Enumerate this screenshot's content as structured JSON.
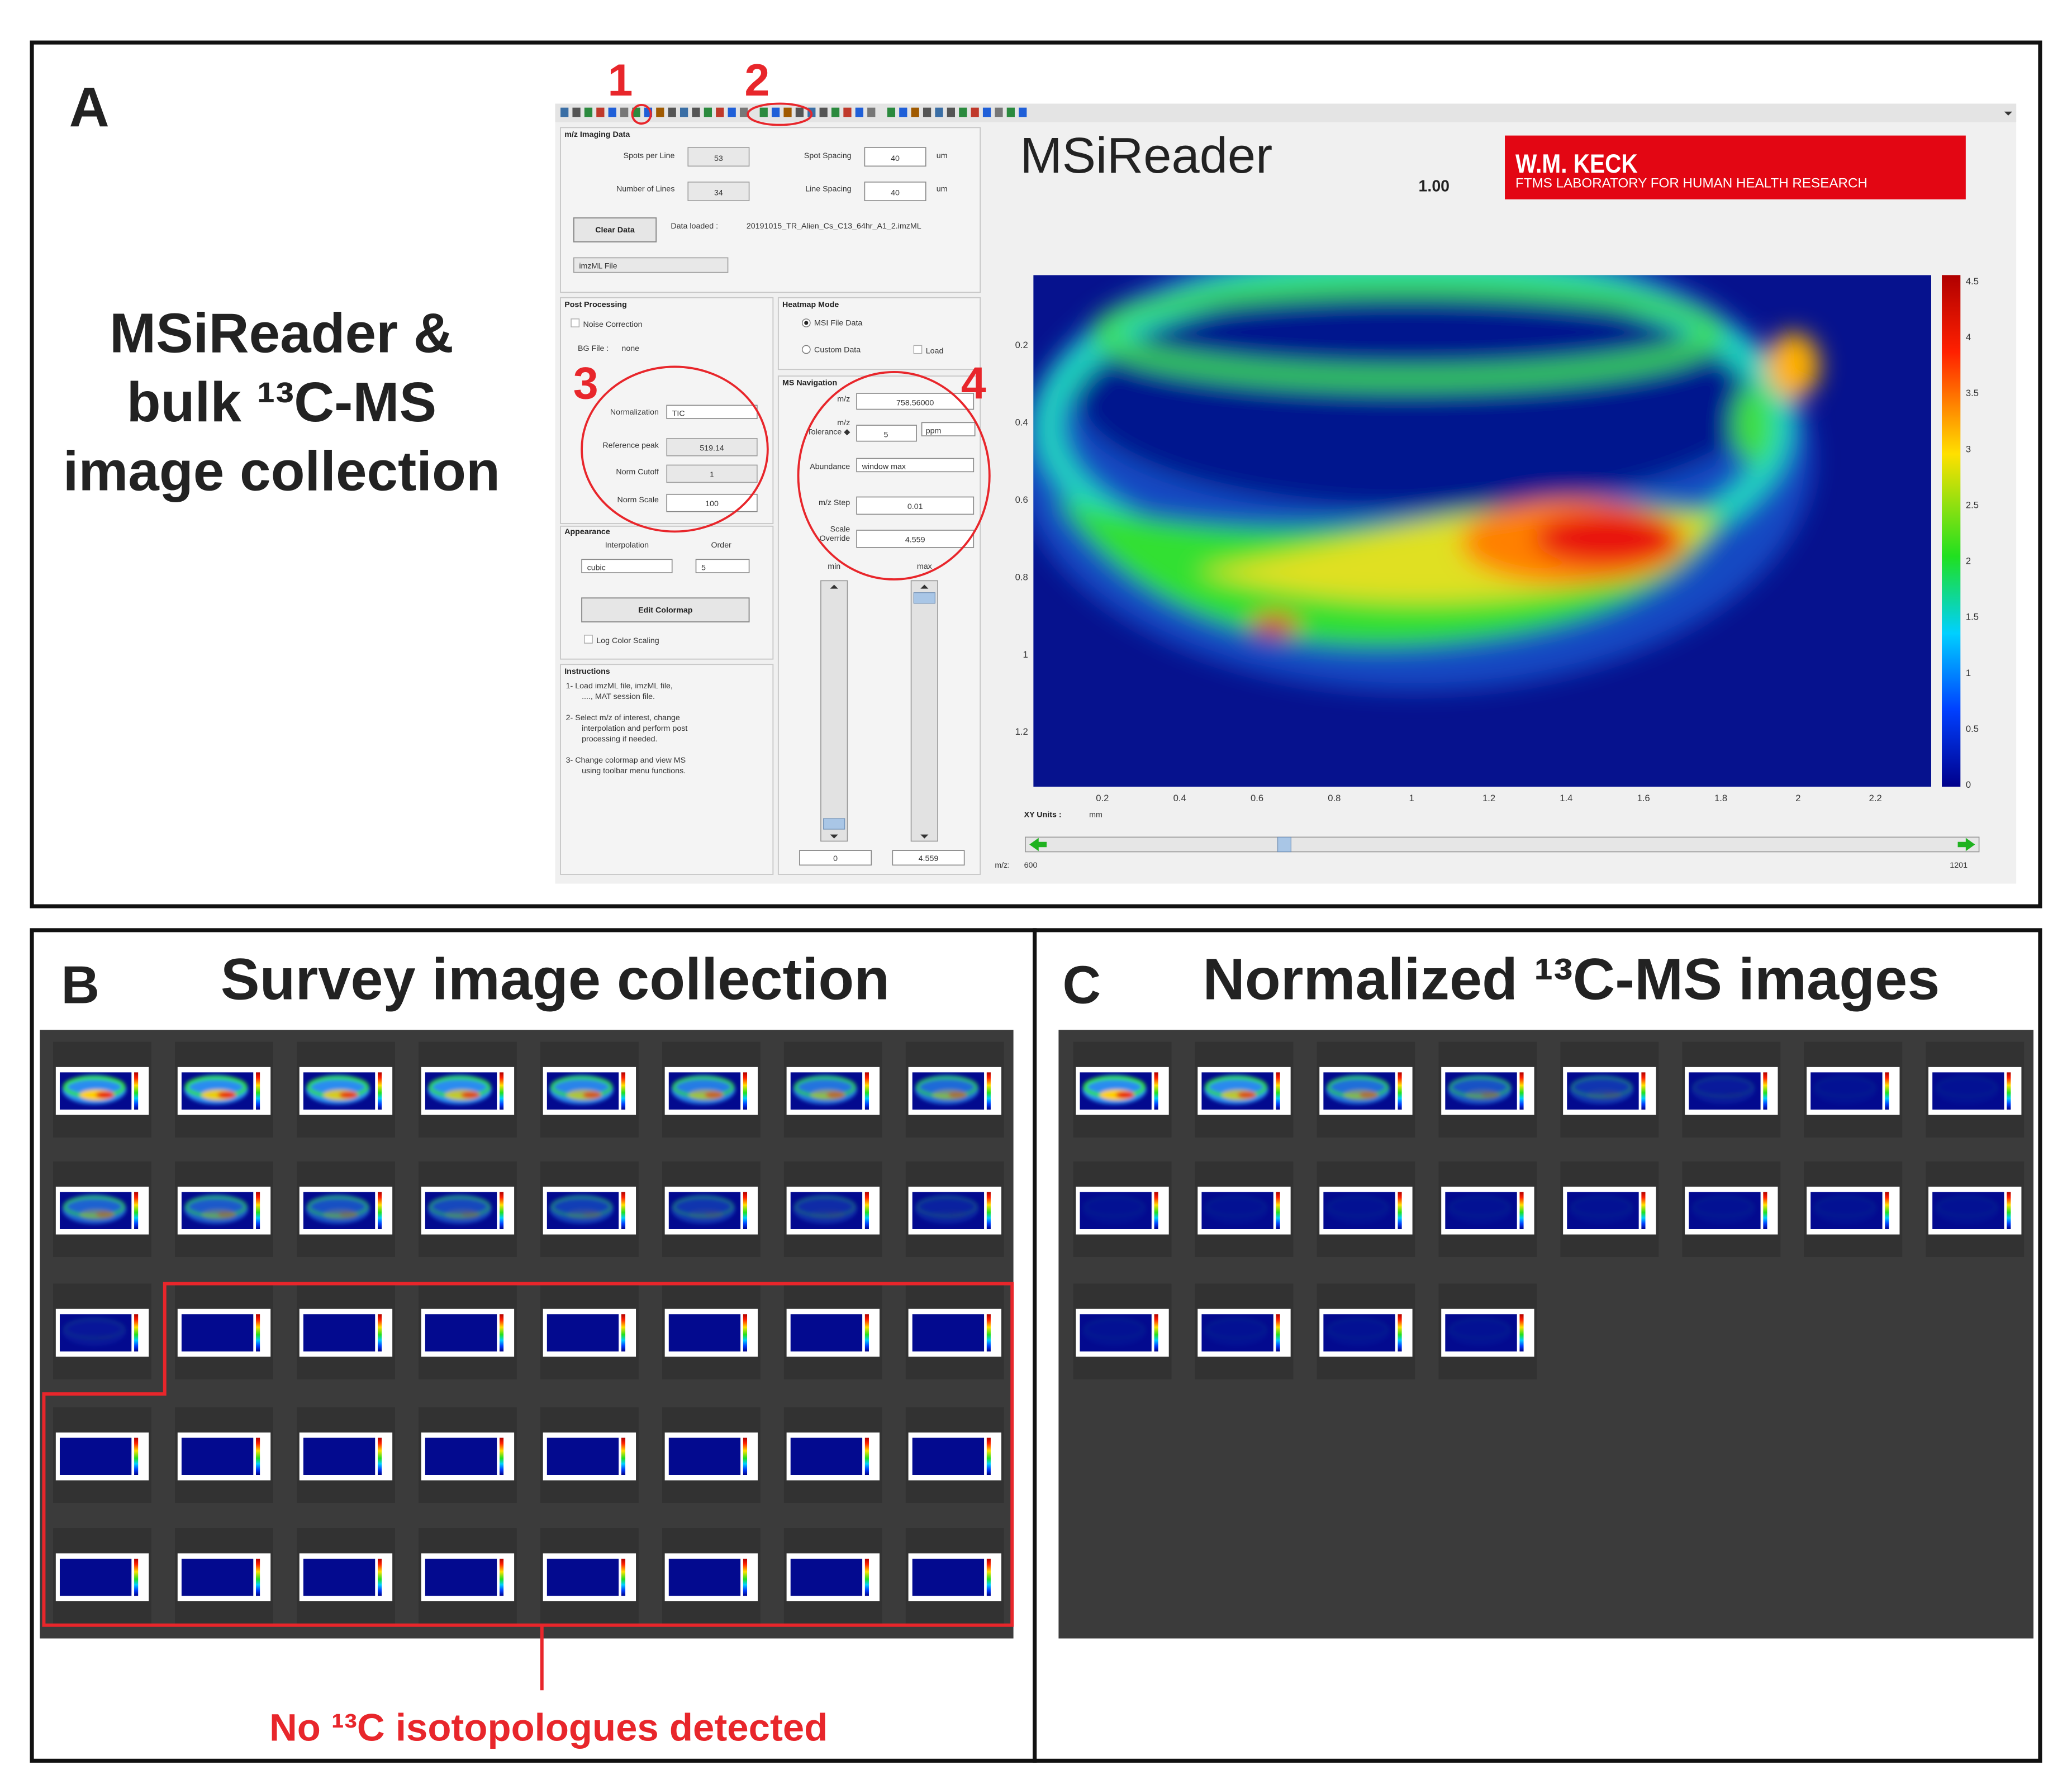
{
  "panel_a": {
    "label": "A",
    "heading": [
      "MSiReader &",
      "bulk ¹³C-MS",
      "image collection"
    ],
    "callouts": [
      "1",
      "2",
      "3",
      "4"
    ]
  },
  "app": {
    "title": "MSiReader",
    "version": "1.00",
    "logo": {
      "title": "W.M. KECK",
      "subtitle": "FTMS LABORATORY FOR HUMAN HEALTH RESEARCH"
    },
    "imaging_data": {
      "heading": "m/z Imaging Data",
      "spots_per_line": {
        "label": "Spots per Line",
        "value": "53"
      },
      "number_of_lines": {
        "label": "Number of Lines",
        "value": "34"
      },
      "spot_spacing": {
        "label": "Spot Spacing",
        "value": "40",
        "unit": "um"
      },
      "line_spacing": {
        "label": "Line Spacing",
        "value": "40",
        "unit": "um"
      },
      "clear_button": "Clear Data",
      "data_loaded": {
        "label": "Data loaded :",
        "value": "20191015_TR_Alien_Cs_C13_64hr_A1_2.imzML"
      },
      "file_type": "imzML File"
    },
    "post_processing": {
      "heading": "Post Processing",
      "noise_correction": "Noise Correction",
      "bg_file": {
        "label": "BG File :",
        "value": "none"
      },
      "normalization": {
        "label": "Normalization",
        "value": "TIC"
      },
      "reference_peak": {
        "label": "Reference peak",
        "value": "519.14"
      },
      "norm_cutoff": {
        "label": "Norm Cutoff",
        "value": "1"
      },
      "norm_scale": {
        "label": "Norm Scale",
        "value": "100"
      }
    },
    "heatmap_mode": {
      "heading": "Heatmap Mode",
      "msi_file": "MSI File Data",
      "custom": "Custom Data",
      "load": "Load"
    },
    "ms_navigation": {
      "heading": "MS Navigation",
      "mz": {
        "label": "m/z",
        "value": "758.56000"
      },
      "tolerance": {
        "label": [
          "m/z",
          "Tolerance ◆"
        ],
        "value": "5",
        "unit": "ppm"
      },
      "abundance": {
        "label": "Abundance",
        "value": "window max"
      },
      "step": {
        "label": "m/z Step",
        "value": "0.01"
      },
      "scale_override": {
        "label": [
          "Scale",
          "Override"
        ],
        "value": "4.559"
      },
      "min_label": "min",
      "max_label": "max",
      "min_value": "0",
      "max_value": "4.559"
    },
    "appearance": {
      "heading": "Appearance",
      "interpolation": {
        "label": "Interpolation",
        "value": "cubic"
      },
      "order": {
        "label": "Order",
        "value": "5"
      },
      "colormap_button": "Edit Colormap",
      "log_scaling": "Log Color Scaling"
    },
    "instructions": {
      "heading": "Instructions",
      "lines": [
        "1- Load imzML file, imzML file,",
        "...., MAT session file.",
        "2- Select m/z of interest, change",
        "interpolation and perform post",
        "processing if needed.",
        "3- Change colormap and view MS",
        "using toolbar menu functions."
      ]
    },
    "heatmap": {
      "yticks": [
        "0.2",
        "0.4",
        "0.6",
        "0.8",
        "1",
        "1.2"
      ],
      "xticks": [
        "0.2",
        "0.4",
        "0.6",
        "0.8",
        "1",
        "1.2",
        "1.4",
        "1.6",
        "1.8",
        "2",
        "2.2"
      ],
      "colorbar_ticks": [
        "4.5",
        "4",
        "3.5",
        "3",
        "2.5",
        "2",
        "1.5",
        "1",
        "0.5",
        "0"
      ],
      "xy_units": {
        "label": "XY Units :",
        "value": "mm"
      },
      "mz_slider": {
        "label": "m/z:",
        "min": "600",
        "max": "1201"
      }
    }
  },
  "panel_b": {
    "label": "B",
    "title": "Survey image collection",
    "annotation": "No ¹³C isotopologues detected"
  },
  "panel_c": {
    "label": "C",
    "title": "Normalized ¹³C-MS images"
  }
}
